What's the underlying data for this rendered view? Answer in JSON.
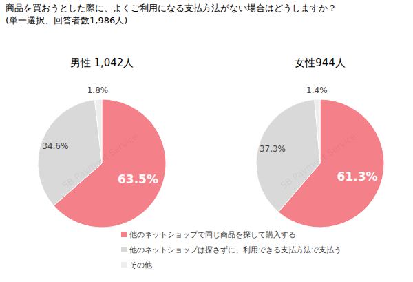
{
  "title": "商品を買おうとした際に、よくご利用になる支払方法がない場合はどうしますか？",
  "subtitle": "(単一選択、回答者数1,986人)",
  "watermark": "SB Payment Service",
  "chart_data": [
    {
      "type": "pie",
      "title": "男性 1,042人",
      "categories": [
        "他のネットショップで同じ商品を探して購入する",
        "他のネットショップは探さずに、利用できる支払方法で支払う",
        "その他"
      ],
      "values": [
        63.5,
        34.6,
        1.8
      ],
      "value_labels": [
        "63.5%",
        "34.6%",
        "1.8%"
      ],
      "colors": [
        "#f4818a",
        "#d9d9d9",
        "#eeeeee"
      ],
      "data_labels": true,
      "legend": "bottom"
    },
    {
      "type": "pie",
      "title": "女性944人",
      "categories": [
        "他のネットショップで同じ商品を探して購入する",
        "他のネットショップは探さずに、利用できる支払方法で支払う",
        "その他"
      ],
      "values": [
        61.3,
        37.3,
        1.4
      ],
      "value_labels": [
        "61.3%",
        "37.3%",
        "1.4%"
      ],
      "colors": [
        "#f4818a",
        "#d9d9d9",
        "#eeeeee"
      ],
      "data_labels": true,
      "legend": "bottom"
    }
  ]
}
